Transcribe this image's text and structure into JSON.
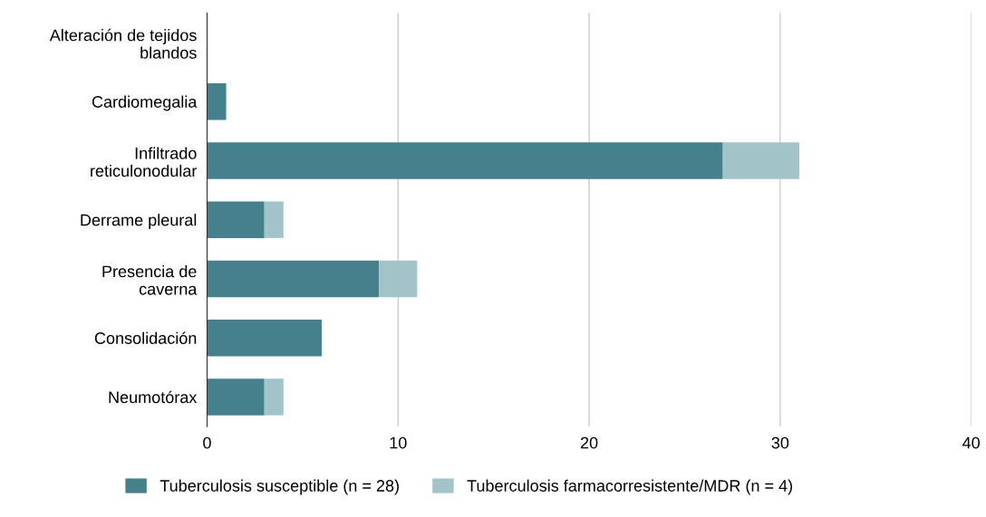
{
  "chart_data": {
    "type": "bar",
    "orientation": "horizontal",
    "stacked": true,
    "categories": [
      "Alteración de tejidos\nblandos",
      "Cardiomegalia",
      "Infiltrado\nreticulonodular",
      "Derrame pleural",
      "Presencia de\ncaverna",
      "Consolidación",
      "Neumotórax"
    ],
    "series": [
      {
        "name": "Tuberculosis susceptible (n = 28)",
        "color": "#45808c",
        "values": [
          0,
          1,
          27,
          3,
          9,
          6,
          3
        ]
      },
      {
        "name": "Tuberculosis farmacorresistente/MDR (n = 4)",
        "color": "#a2c4c9",
        "values": [
          0,
          0,
          4,
          1,
          2,
          0,
          1
        ]
      }
    ],
    "xlim": [
      0,
      40
    ],
    "xticks": [
      0,
      10,
      20,
      30,
      40
    ],
    "grid": "x",
    "legend": "bottom"
  }
}
